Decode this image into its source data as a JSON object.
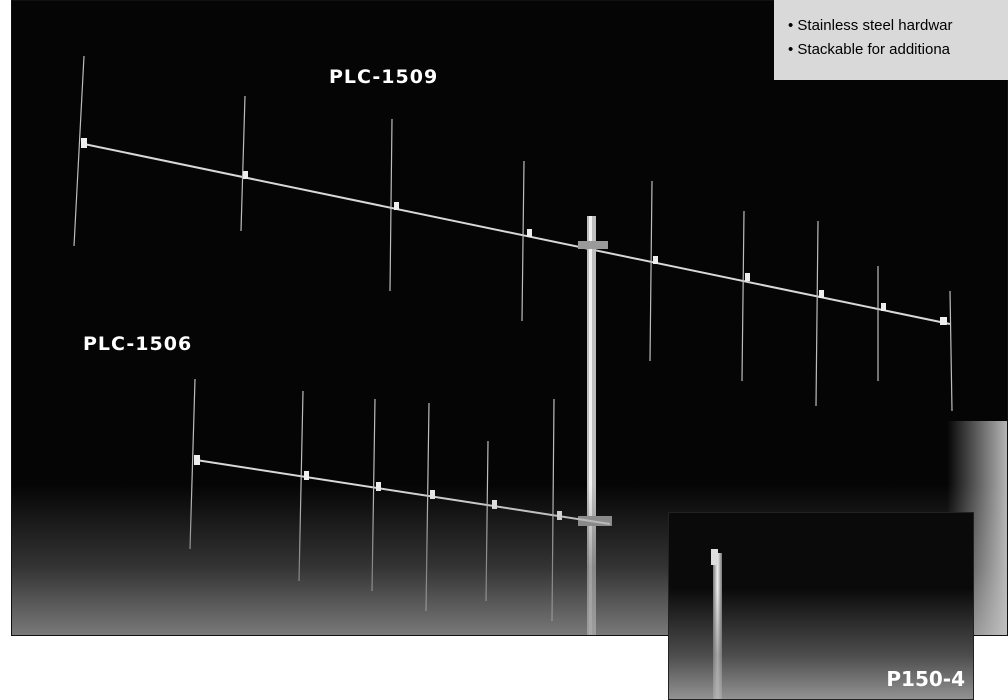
{
  "photo": {
    "labels": {
      "top_antenna": "PLC-1509",
      "lower_antenna": "PLC-1506"
    }
  },
  "spec_list": {
    "items": [
      "• Stainless steel hardwar",
      "• Stackable for additiona"
    ]
  },
  "inset": {
    "label": "P150-4"
  },
  "colors": {
    "background": "#050505",
    "label_text": "#ffffff",
    "spec_box": "#d9d9d9"
  }
}
